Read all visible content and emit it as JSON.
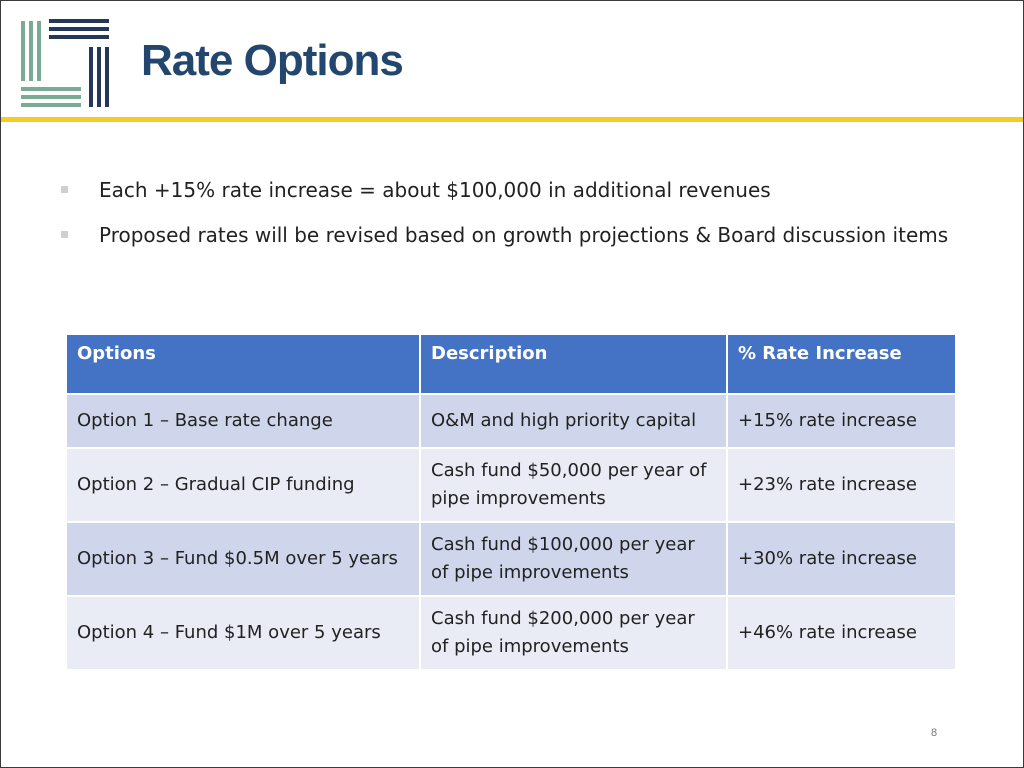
{
  "colors": {
    "title": "#22466e",
    "divider": "#f3cd21",
    "logo_green": "#7bab96",
    "logo_navy": "#26385a",
    "table_header_bg": "#4472c4",
    "row_dark": "#cfd5ea",
    "row_light": "#e9ebf5",
    "bullet": "#cfcfcf"
  },
  "logo": {
    "icon": "organization-logo-bars"
  },
  "slide": {
    "title": "Rate Options",
    "page_number": "8"
  },
  "bullets": [
    {
      "icon": "square-bullet",
      "text": "Each +15% rate increase = about $100,000 in additional revenues"
    },
    {
      "icon": "square-bullet",
      "text": "Proposed rates will be revised based on growth projections & Board discussion items"
    }
  ],
  "table": {
    "headers": [
      "Options",
      "Description",
      "% Rate Increase"
    ],
    "rows": [
      [
        "Option 1 – Base rate change",
        "O&M and high priority capital",
        "+15% rate increase"
      ],
      [
        "Option 2 – Gradual CIP funding",
        "Cash fund $50,000 per year of pipe improvements",
        "+23% rate increase"
      ],
      [
        "Option 3 – Fund $0.5M over 5 years",
        "Cash fund $100,000 per year of pipe improvements",
        "+30% rate increase"
      ],
      [
        "Option 4 – Fund $1M over 5 years",
        "Cash fund $200,000 per year of pipe improvements",
        "+46% rate increase"
      ]
    ]
  }
}
